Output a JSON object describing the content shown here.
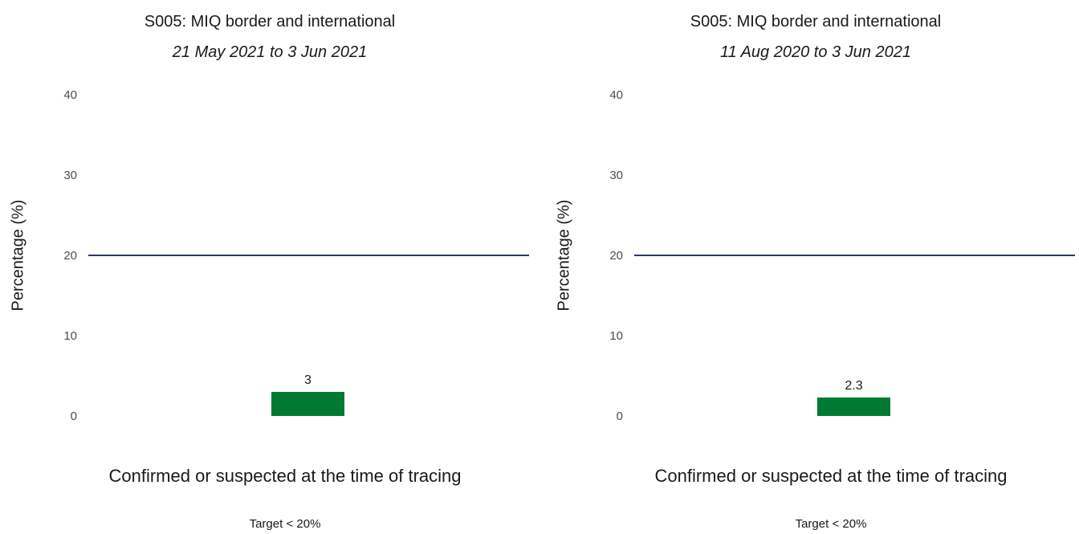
{
  "colors": {
    "bar": "#007a33",
    "target_line": "#2b3a67"
  },
  "chart_data": [
    {
      "type": "bar",
      "title": "S005: MIQ border and international",
      "subtitle": "21 May 2021 to 3 Jun 2021",
      "ylabel": "Percentage (%)",
      "categories": [
        "Confirmed or suspected at the time of tracing"
      ],
      "values": [
        3
      ],
      "data_labels": [
        "3"
      ],
      "ylim": [
        0,
        40
      ],
      "yticks": [
        0,
        10,
        20,
        30,
        40
      ],
      "target": 20,
      "caption": "Target < 20%",
      "grid": false
    },
    {
      "type": "bar",
      "title": "S005: MIQ border and international",
      "subtitle": "11 Aug 2020 to 3 Jun 2021",
      "ylabel": "Percentage (%)",
      "categories": [
        "Confirmed or suspected at the time of tracing"
      ],
      "values": [
        2.3
      ],
      "data_labels": [
        "2.3"
      ],
      "ylim": [
        0,
        40
      ],
      "yticks": [
        0,
        10,
        20,
        30,
        40
      ],
      "target": 20,
      "caption": "Target < 20%",
      "grid": false
    }
  ]
}
